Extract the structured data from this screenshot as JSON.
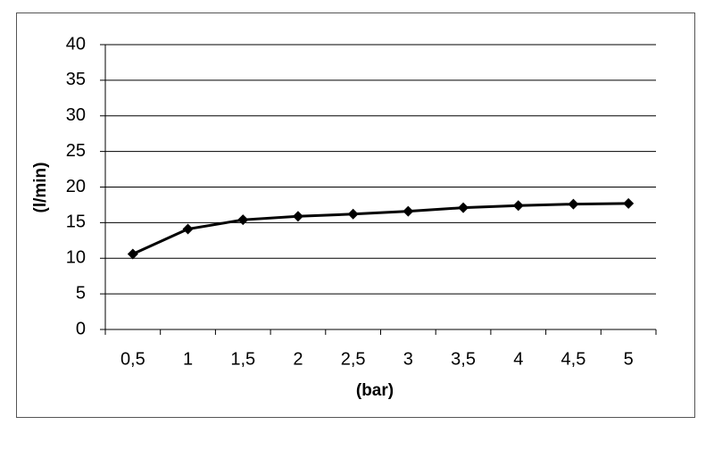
{
  "chart_data": {
    "type": "line",
    "x_label": "(bar)",
    "y_label": "(l/min)",
    "categories": [
      "0,5",
      "1",
      "1,5",
      "2",
      "2,5",
      "3",
      "3,5",
      "4",
      "4,5",
      "5"
    ],
    "series": [
      {
        "color": "#000000",
        "values": [
          10.6,
          14.1,
          15.4,
          15.9,
          16.2,
          16.6,
          17.1,
          17.4,
          17.6,
          17.7
        ]
      }
    ],
    "ylim": [
      0,
      40
    ],
    "yticks": [
      0,
      5,
      10,
      15,
      20,
      25,
      30,
      35,
      40
    ],
    "grid": true
  }
}
